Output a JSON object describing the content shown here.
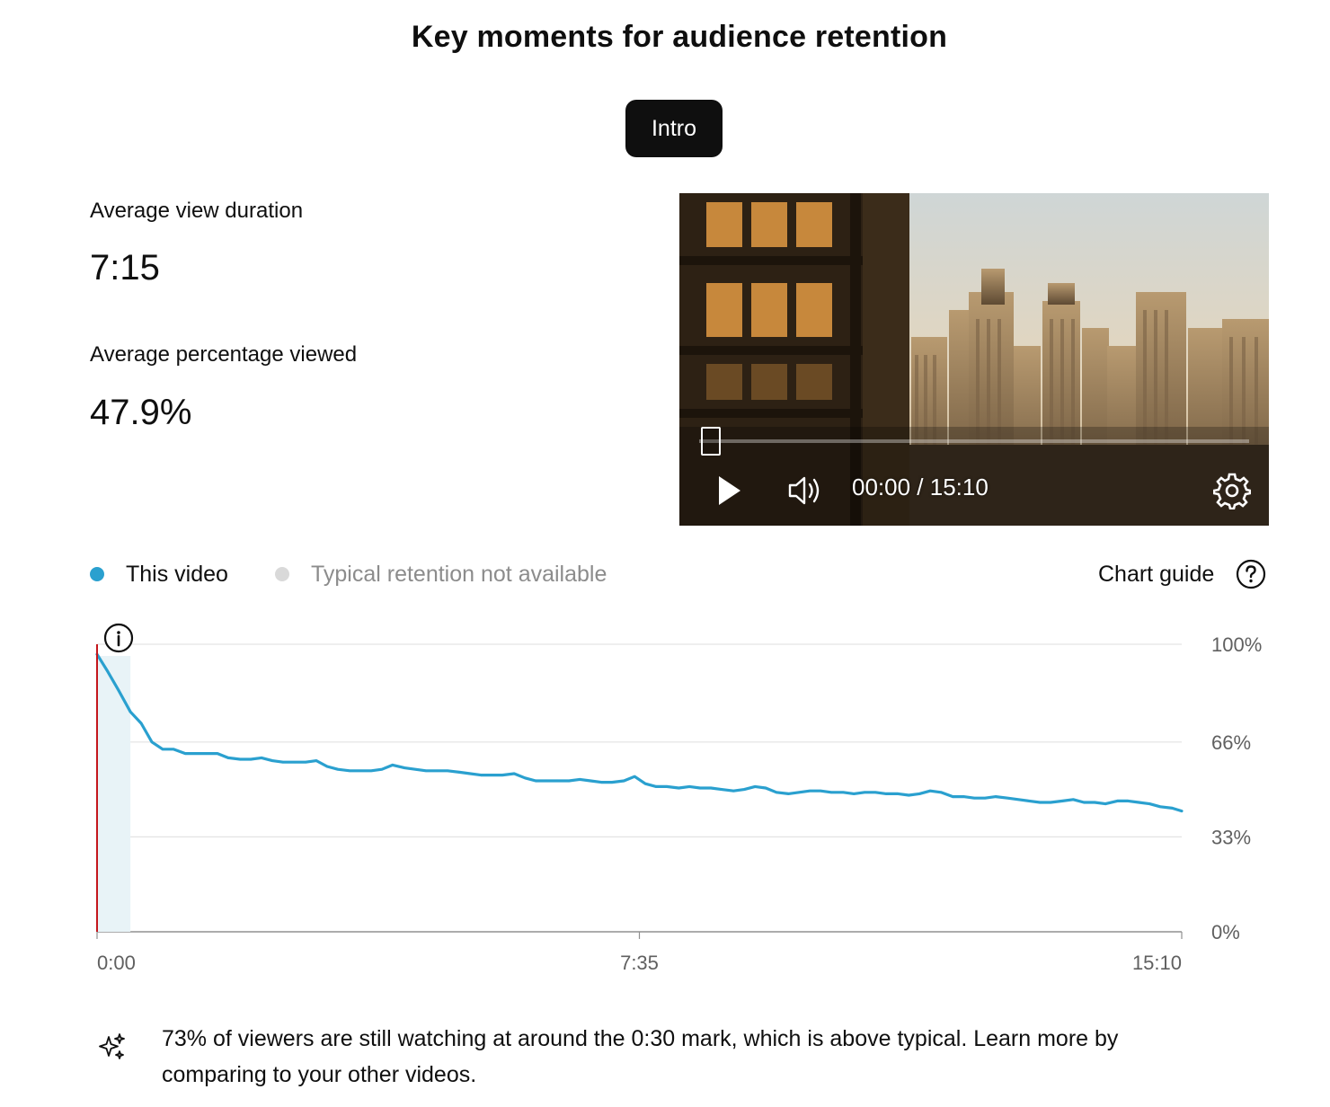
{
  "title": "Key moments for audience retention",
  "segment_chip": "Intro",
  "metrics": [
    {
      "label": "Average view duration",
      "value": "7:15"
    },
    {
      "label": "Average percentage viewed",
      "value": "47.9%"
    }
  ],
  "player": {
    "time_readout": "00:00 / 15:10",
    "controls": [
      "play-icon",
      "volume-icon",
      "settings-icon"
    ]
  },
  "legend": {
    "this_video": "This video",
    "typical": "Typical retention not available",
    "chart_guide": "Chart guide",
    "this_video_color": "#2aa0cf",
    "typical_color": "#d9d9d9"
  },
  "chart_data": {
    "type": "line",
    "x_unit": "seconds",
    "x_duration": 910,
    "xlim": [
      0,
      910
    ],
    "ylim": [
      0,
      100
    ],
    "x_tick_labels": [
      {
        "t": 0,
        "label": "0:00"
      },
      {
        "t": 455,
        "label": "7:35"
      },
      {
        "t": 910,
        "label": "15:10"
      }
    ],
    "y_tick_labels": [
      {
        "v": 100,
        "label": "100%"
      },
      {
        "v": 66,
        "label": "66%"
      },
      {
        "v": 33,
        "label": "33%"
      },
      {
        "v": 0,
        "label": "0%"
      }
    ],
    "grid": true,
    "highlight_range": [
      0,
      28
    ],
    "marker_t": 0,
    "series": [
      {
        "name": "This video",
        "color": "#2aa0cf",
        "x": [
          0,
          9,
          18,
          28,
          37,
          46,
          55,
          64,
          74,
          83,
          92,
          101,
          110,
          120,
          129,
          138,
          147,
          156,
          166,
          175,
          184,
          193,
          202,
          212,
          221,
          230,
          239,
          248,
          258,
          267,
          276,
          285,
          294,
          304,
          313,
          322,
          331,
          340,
          350,
          359,
          368,
          377,
          386,
          396,
          405,
          414,
          423,
          432,
          442,
          451,
          460,
          469,
          478,
          488,
          497,
          506,
          515,
          524,
          534,
          543,
          552,
          561,
          570,
          580,
          589,
          598,
          607,
          616,
          626,
          635,
          644,
          653,
          662,
          672,
          681,
          690,
          699,
          708,
          718,
          727,
          736,
          745,
          754,
          764,
          773,
          782,
          791,
          800,
          810,
          819,
          828,
          837,
          846,
          856,
          865,
          874,
          883,
          892,
          902,
          910
        ],
        "values": [
          96.5,
          90.5,
          84.0,
          76.5,
          72.5,
          66.0,
          63.5,
          63.5,
          62.0,
          62.0,
          62.0,
          62.0,
          60.5,
          60.0,
          60.0,
          60.5,
          59.5,
          59.0,
          59.0,
          59.0,
          59.5,
          57.5,
          56.5,
          56.0,
          56.0,
          56.0,
          56.5,
          58.0,
          57.0,
          56.5,
          56.0,
          56.0,
          56.0,
          55.5,
          55.0,
          54.5,
          54.5,
          54.5,
          55.0,
          53.5,
          52.5,
          52.5,
          52.5,
          52.5,
          53.0,
          52.5,
          52.0,
          52.0,
          52.5,
          54.0,
          51.5,
          50.5,
          50.5,
          50.0,
          50.5,
          50.0,
          50.0,
          49.5,
          49.0,
          49.5,
          50.5,
          50.0,
          48.5,
          48.0,
          48.5,
          49.0,
          49.0,
          48.5,
          48.5,
          48.0,
          48.5,
          48.5,
          48.0,
          48.0,
          47.5,
          48.0,
          49.0,
          48.5,
          47.0,
          47.0,
          46.5,
          46.5,
          47.0,
          46.5,
          46.0,
          45.5,
          45.0,
          45.0,
          45.5,
          46.0,
          45.0,
          45.0,
          44.5,
          45.5,
          45.5,
          45.0,
          44.5,
          43.5,
          43.0,
          42.0
        ]
      }
    ]
  },
  "insight": {
    "icon": "sparkle-icon",
    "text": "73% of viewers are still watching at around the 0:30 mark, which is above typical. Learn more by comparing to your other videos."
  }
}
